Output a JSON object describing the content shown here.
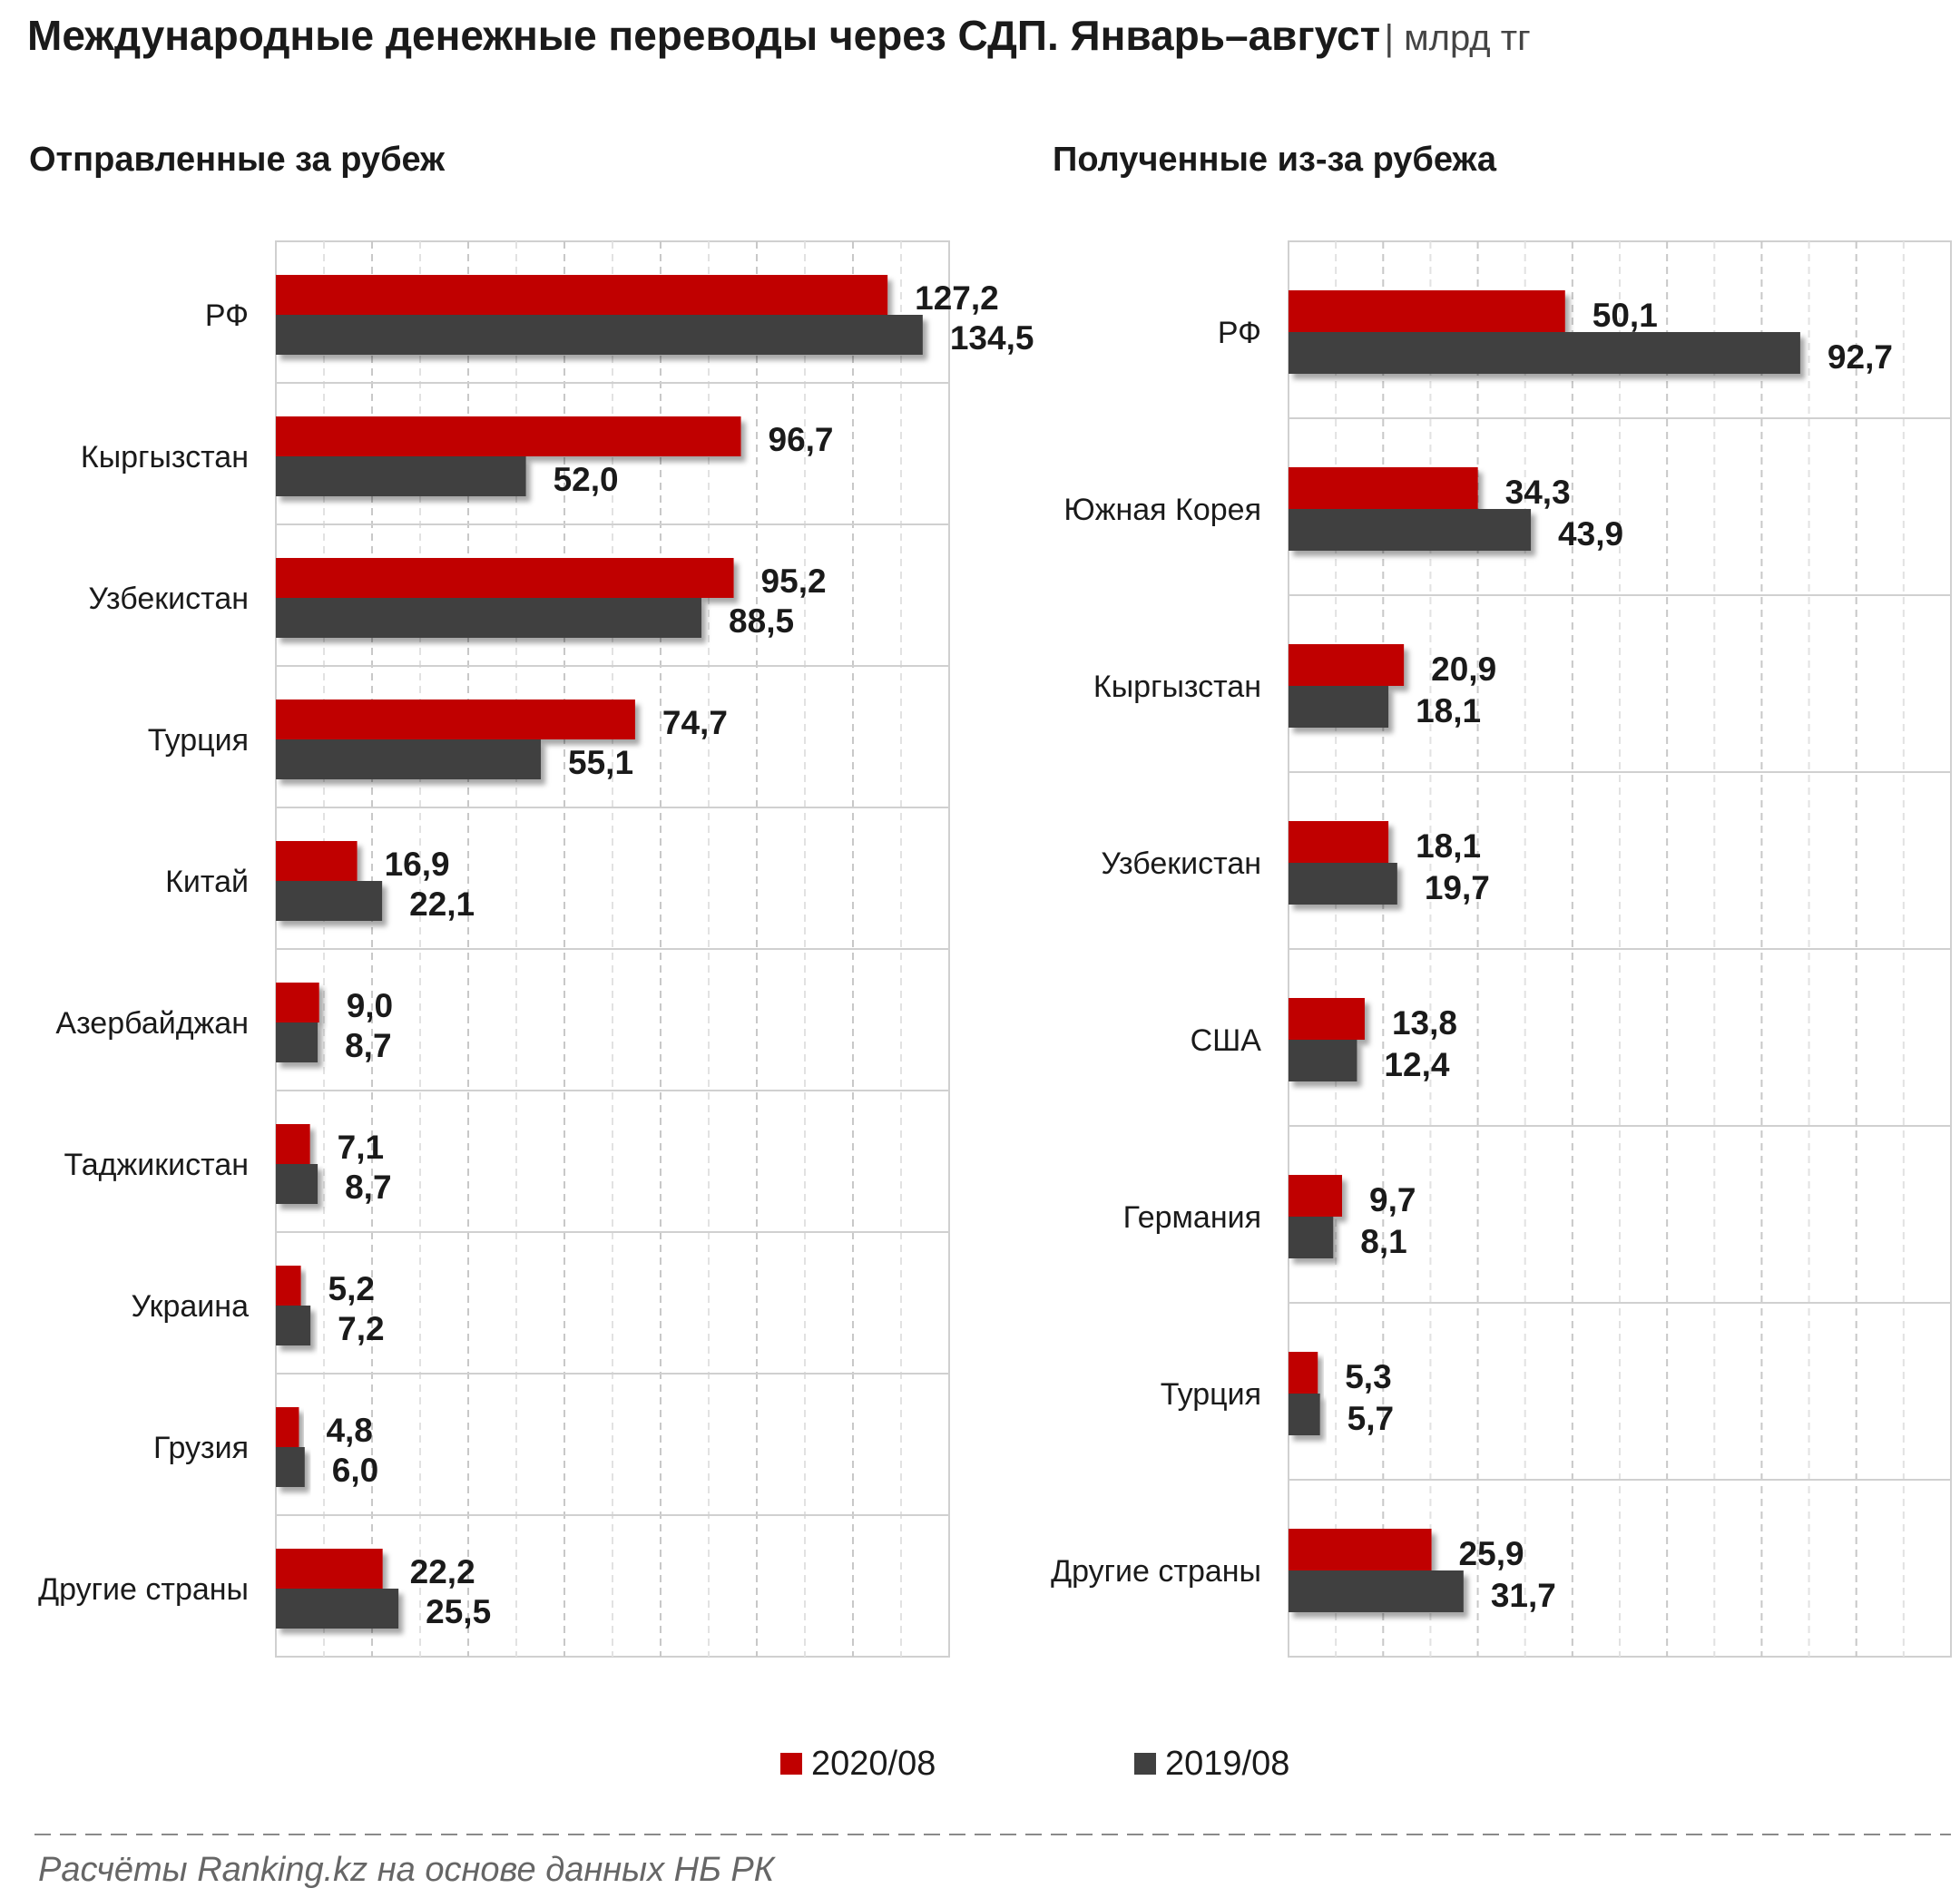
{
  "title": "Международные денежные переводы через СДП. Январь–август",
  "unit": "| млрд тг",
  "source": "Расчёты Ranking.kz на основе данных НБ РК",
  "colors": {
    "current": "#c00000",
    "previous": "#404040"
  },
  "legend": [
    {
      "label": "2020/08",
      "color": "#c00000"
    },
    {
      "label": "2019/08",
      "color": "#404040"
    }
  ],
  "chart_data": [
    {
      "type": "bar",
      "orientation": "horizontal",
      "title": "Отправленные  за рубеж",
      "xlim": [
        0,
        140
      ],
      "grid": true,
      "categories": [
        "РФ",
        "Кыргызстан",
        "Узбекистан",
        "Турция",
        "Китай",
        "Азербайджан",
        "Таджикистан",
        "Украина",
        "Грузия",
        "Другие страны"
      ],
      "series": [
        {
          "name": "2020/08",
          "values": [
            127.2,
            96.7,
            95.2,
            74.7,
            16.9,
            9.0,
            7.1,
            5.2,
            4.8,
            22.2
          ],
          "labels": [
            "127,2",
            "96,7",
            "95,2",
            "74,7",
            "16,9",
            "9,0",
            "7,1",
            "5,2",
            "4,8",
            "22,2"
          ]
        },
        {
          "name": "2019/08",
          "values": [
            134.5,
            52.0,
            88.5,
            55.1,
            22.1,
            8.7,
            8.7,
            7.2,
            6.0,
            25.5
          ],
          "labels": [
            "134,5",
            "52,0",
            "88,5",
            "55,1",
            "22,1",
            "8,7",
            "8,7",
            "7,2",
            "6,0",
            "25,5"
          ]
        }
      ]
    },
    {
      "type": "bar",
      "orientation": "horizontal",
      "title": "Полученные  из-за рубежа",
      "xlim": [
        0,
        120
      ],
      "grid": true,
      "categories": [
        "РФ",
        "Южная Корея",
        "Кыргызстан",
        "Узбекистан",
        "США",
        "Германия",
        "Турция",
        "Другие страны"
      ],
      "series": [
        {
          "name": "2020/08",
          "values": [
            50.1,
            34.3,
            20.9,
            18.1,
            13.8,
            9.7,
            5.3,
            25.9
          ],
          "labels": [
            "50,1",
            "34,3",
            "20,9",
            "18,1",
            "13,8",
            "9,7",
            "5,3",
            "25,9"
          ]
        },
        {
          "name": "2019/08",
          "values": [
            92.7,
            43.9,
            18.1,
            19.7,
            12.4,
            8.1,
            5.7,
            31.7
          ],
          "labels": [
            "92,7",
            "43,9",
            "18,1",
            "19,7",
            "12,4",
            "8,1",
            "5,7",
            "31,7"
          ]
        }
      ]
    }
  ]
}
